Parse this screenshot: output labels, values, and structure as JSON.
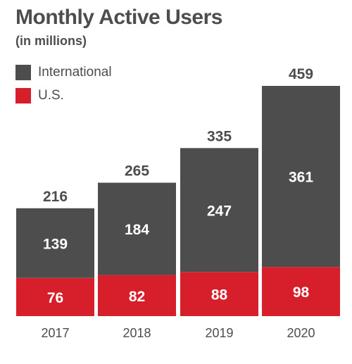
{
  "chart_data": {
    "type": "bar",
    "stacked": true,
    "title": "Monthly Active Users",
    "subtitle": "(in millions)",
    "categories": [
      "2017",
      "2018",
      "2019",
      "2020"
    ],
    "series": [
      {
        "name": "U.S.",
        "values": [
          76,
          82,
          88,
          98
        ],
        "color": "#d61f2b"
      },
      {
        "name": "International",
        "values": [
          139,
          184,
          247,
          361
        ],
        "color": "#4d4d4d"
      }
    ],
    "totals": [
      216,
      265,
      335,
      459
    ],
    "ylim": [
      0,
      459
    ],
    "grid": false,
    "legend_position": "top-left"
  }
}
